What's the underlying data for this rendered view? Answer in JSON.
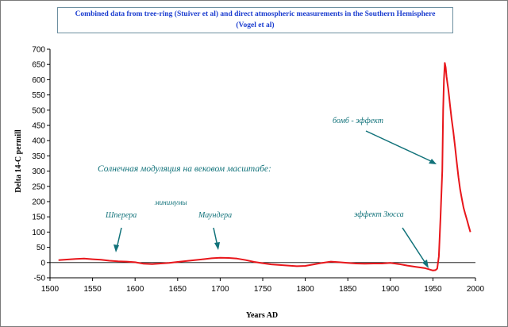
{
  "chart_data": {
    "type": "line",
    "title_lines": [
      "Combined data from tree-ring (Stuiver et al) and direct atmospheric measurements in the Southern Hemisphere",
      "(Vogel et al)"
    ],
    "xlabel": "Years AD",
    "ylabel": "Delta 14-C permill",
    "xlim": [
      1500,
      2000
    ],
    "ylim": [
      -50,
      700
    ],
    "xticks": [
      "1500",
      "1550",
      "1600",
      "1650",
      "1700",
      "1750",
      "1800",
      "1850",
      "1900",
      "1950",
      "2000"
    ],
    "yticks": [
      "-50",
      "0",
      "50",
      "100",
      "150",
      "200",
      "250",
      "300",
      "350",
      "400",
      "450",
      "500",
      "550",
      "600",
      "650",
      "700"
    ],
    "grid": false,
    "line_color": "#e8161b",
    "annotation_color": "#11727a",
    "series": [
      {
        "x": [
          1510,
          1520,
          1530,
          1540,
          1550,
          1560,
          1570,
          1580,
          1590,
          1600,
          1610,
          1620,
          1630,
          1640,
          1650,
          1660,
          1670,
          1680,
          1690,
          1700,
          1710,
          1720,
          1730,
          1740,
          1750,
          1760,
          1770,
          1780,
          1790,
          1800,
          1810,
          1820,
          1830,
          1840,
          1850,
          1860,
          1870,
          1880,
          1890,
          1900,
          1910,
          1920,
          1930,
          1940,
          1945,
          1950,
          1953,
          1955,
          1957,
          1959,
          1961,
          1962,
          1963,
          1964,
          1965,
          1966,
          1967,
          1968,
          1969,
          1970,
          1972,
          1974,
          1976,
          1978,
          1980,
          1982,
          1984,
          1986,
          1988,
          1990,
          1992,
          1994
        ],
        "y": [
          8,
          10,
          12,
          13,
          11,
          9,
          6,
          4,
          3,
          1,
          -4,
          -5,
          -3,
          -1,
          2,
          5,
          8,
          11,
          14,
          16,
          15,
          13,
          8,
          2,
          -2,
          -6,
          -8,
          -10,
          -12,
          -11,
          -6,
          -1,
          3,
          1,
          -1,
          -3,
          -4,
          -3,
          -3,
          -1,
          -5,
          -10,
          -14,
          -18,
          -22,
          -26,
          -25,
          -20,
          20,
          150,
          300,
          500,
          600,
          655,
          640,
          610,
          590,
          570,
          545,
          520,
          470,
          430,
          380,
          330,
          280,
          240,
          210,
          180,
          160,
          140,
          120,
          100
        ]
      }
    ],
    "annotations": {
      "bomb": "бомб - эффект",
      "solar": "Солнечная модуляция на вековом масштабе:",
      "minima": "минимумы",
      "sporer": "Шперера",
      "maunder": "Маундера",
      "suess": "эффект Зюсса"
    }
  }
}
